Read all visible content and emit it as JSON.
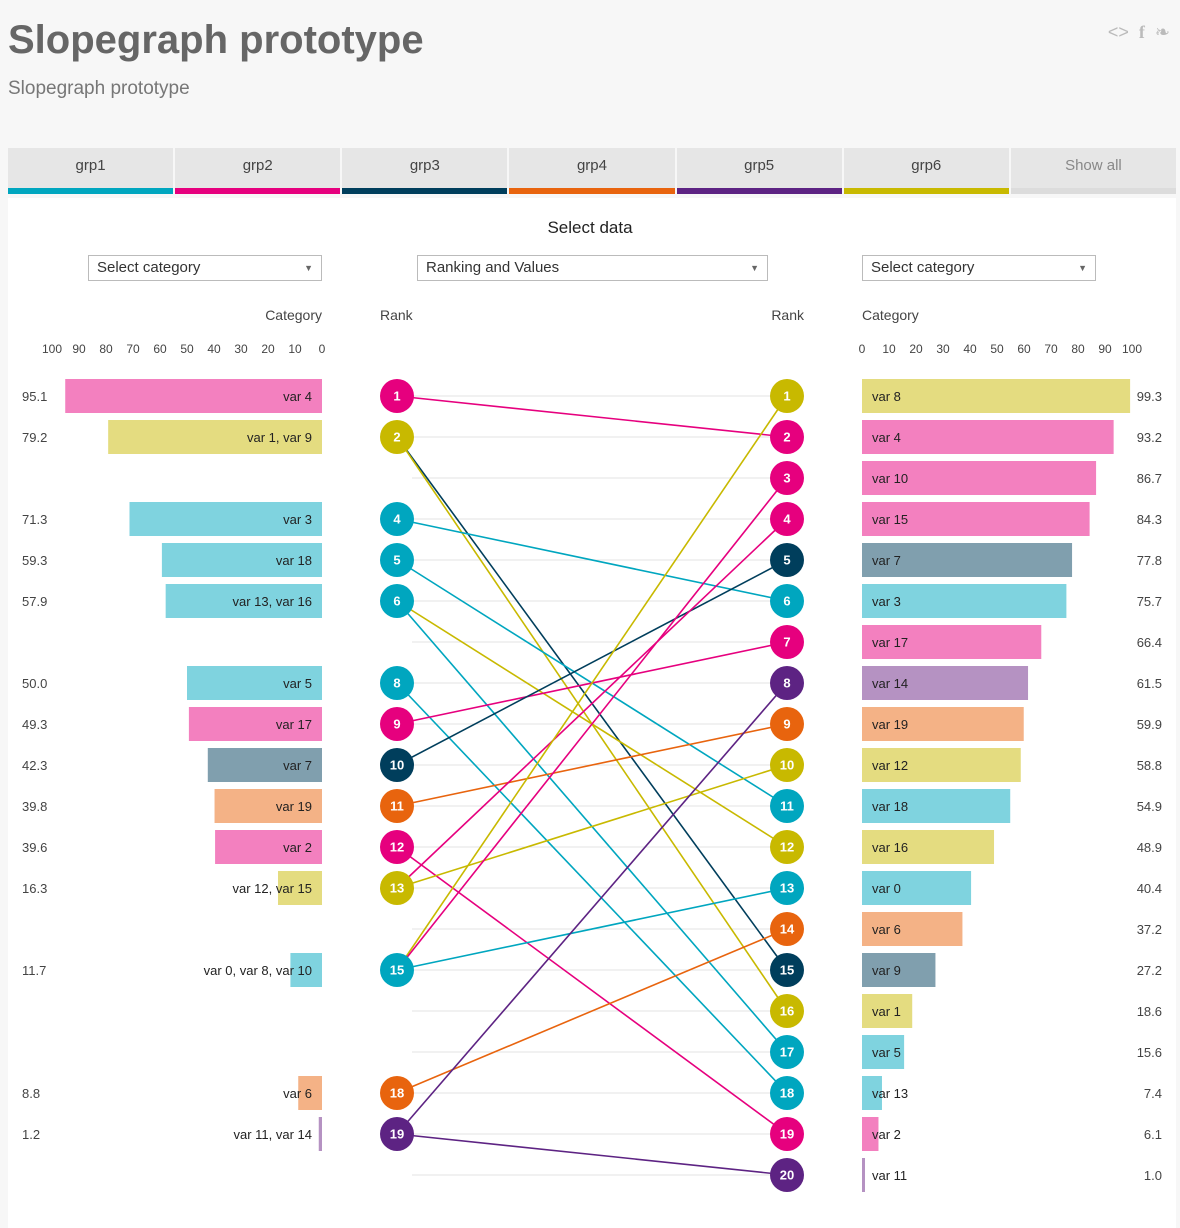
{
  "header": {
    "title": "Slopegraph prototype",
    "subtitle": "Slopegraph prototype"
  },
  "share_icons": [
    "embed-icon",
    "facebook-icon",
    "twitter-icon"
  ],
  "tabs": [
    {
      "label": "grp1",
      "color": "#00a6bf"
    },
    {
      "label": "grp2",
      "color": "#e6007e"
    },
    {
      "label": "grp3",
      "color": "#003e5c"
    },
    {
      "label": "grp4",
      "color": "#e8640e"
    },
    {
      "label": "grp5",
      "color": "#5d2383"
    },
    {
      "label": "grp6",
      "color": "#c8b900"
    },
    {
      "label": "Show all",
      "color": "#dcdcdc"
    }
  ],
  "controls": {
    "select_data_label": "Select data",
    "left_select": "Select category",
    "middle_select": "Ranking and Values",
    "right_select": "Select category"
  },
  "chart_data": {
    "type": "slopegraph",
    "left_axis": {
      "label": "Category",
      "ticks": [
        100,
        90,
        80,
        70,
        60,
        50,
        40,
        30,
        20,
        10,
        0
      ],
      "range": [
        0,
        100
      ]
    },
    "right_axis": {
      "label": "Category",
      "ticks": [
        0,
        10,
        20,
        30,
        40,
        50,
        60,
        70,
        80,
        90,
        100
      ],
      "range": [
        0,
        100
      ]
    },
    "rank_label_left": "Rank",
    "rank_label_right": "Rank",
    "left_bars": [
      {
        "rank": 1,
        "value": 95.1,
        "value_label": "95.1",
        "label": "var 4",
        "group": 1
      },
      {
        "rank": 2,
        "value": 79.2,
        "value_label": "79.2",
        "label": "var 1, var 9",
        "group": 5
      },
      {
        "rank": 4,
        "value": 71.3,
        "value_label": "71.3",
        "label": "var 3",
        "group": 0
      },
      {
        "rank": 5,
        "value": 59.3,
        "value_label": "59.3",
        "label": "var 18",
        "group": 0
      },
      {
        "rank": 6,
        "value": 57.9,
        "value_label": "57.9",
        "label": "var 13, var 16",
        "group": 0
      },
      {
        "rank": 8,
        "value": 50.0,
        "value_label": "50.0",
        "label": "var 5",
        "group": 0
      },
      {
        "rank": 9,
        "value": 49.3,
        "value_label": "49.3",
        "label": "var 17",
        "group": 1
      },
      {
        "rank": 10,
        "value": 42.3,
        "value_label": "42.3",
        "label": "var 7",
        "group": 2
      },
      {
        "rank": 11,
        "value": 39.8,
        "value_label": "39.8",
        "label": "var 19",
        "group": 3
      },
      {
        "rank": 12,
        "value": 39.6,
        "value_label": "39.6",
        "label": "var 2",
        "group": 1
      },
      {
        "rank": 13,
        "value": 16.3,
        "value_label": "16.3",
        "label": "var 12, var 15",
        "group": 5
      },
      {
        "rank": 15,
        "value": 11.7,
        "value_label": "11.7",
        "label": "var 0, var 8, var 10",
        "group": 0
      },
      {
        "rank": 18,
        "value": 8.8,
        "value_label": "8.8",
        "label": "var 6",
        "group": 3
      },
      {
        "rank": 19,
        "value": 1.2,
        "value_label": "1.2",
        "label": "var 11, var 14",
        "group": 4
      }
    ],
    "right_bars": [
      {
        "rank": 1,
        "value": 99.3,
        "value_label": "99.3",
        "label": "var 8",
        "group": 5
      },
      {
        "rank": 2,
        "value": 93.2,
        "value_label": "93.2",
        "label": "var 4",
        "group": 1
      },
      {
        "rank": 3,
        "value": 86.7,
        "value_label": "86.7",
        "label": "var 10",
        "group": 1
      },
      {
        "rank": 4,
        "value": 84.3,
        "value_label": "84.3",
        "label": "var 15",
        "group": 1
      },
      {
        "rank": 5,
        "value": 77.8,
        "value_label": "77.8",
        "label": "var 7",
        "group": 2
      },
      {
        "rank": 6,
        "value": 75.7,
        "value_label": "75.7",
        "label": "var 3",
        "group": 0
      },
      {
        "rank": 7,
        "value": 66.4,
        "value_label": "66.4",
        "label": "var 17",
        "group": 1
      },
      {
        "rank": 8,
        "value": 61.5,
        "value_label": "61.5",
        "label": "var 14",
        "group": 4
      },
      {
        "rank": 9,
        "value": 59.9,
        "value_label": "59.9",
        "label": "var 19",
        "group": 3
      },
      {
        "rank": 10,
        "value": 58.8,
        "value_label": "58.8",
        "label": "var 12",
        "group": 5
      },
      {
        "rank": 11,
        "value": 54.9,
        "value_label": "54.9",
        "label": "var 18",
        "group": 0
      },
      {
        "rank": 12,
        "value": 48.9,
        "value_label": "48.9",
        "label": "var 16",
        "group": 5
      },
      {
        "rank": 13,
        "value": 40.4,
        "value_label": "40.4",
        "label": "var 0",
        "group": 0
      },
      {
        "rank": 14,
        "value": 37.2,
        "value_label": "37.2",
        "label": "var 6",
        "group": 3
      },
      {
        "rank": 15,
        "value": 27.2,
        "value_label": "27.2",
        "label": "var 9",
        "group": 2
      },
      {
        "rank": 16,
        "value": 18.6,
        "value_label": "18.6",
        "label": "var 1",
        "group": 5
      },
      {
        "rank": 17,
        "value": 15.6,
        "value_label": "15.6",
        "label": "var 5",
        "group": 0
      },
      {
        "rank": 18,
        "value": 7.4,
        "value_label": "7.4",
        "label": "var 13",
        "group": 0
      },
      {
        "rank": 19,
        "value": 6.1,
        "value_label": "6.1",
        "label": "var 2",
        "group": 1
      },
      {
        "rank": 20,
        "value": 1.0,
        "value_label": "1.0",
        "label": "var 11",
        "group": 4
      }
    ],
    "left_nodes": [
      {
        "rank": 1,
        "group": 1
      },
      {
        "rank": 2,
        "group": 5
      },
      {
        "rank": 4,
        "group": 0
      },
      {
        "rank": 5,
        "group": 0
      },
      {
        "rank": 6,
        "group": 0
      },
      {
        "rank": 8,
        "group": 0
      },
      {
        "rank": 9,
        "group": 1
      },
      {
        "rank": 10,
        "group": 2
      },
      {
        "rank": 11,
        "group": 3
      },
      {
        "rank": 12,
        "group": 1
      },
      {
        "rank": 13,
        "group": 5
      },
      {
        "rank": 15,
        "group": 0
      },
      {
        "rank": 18,
        "group": 3
      },
      {
        "rank": 19,
        "group": 4
      }
    ],
    "right_nodes": [
      {
        "rank": 1,
        "group": 5
      },
      {
        "rank": 2,
        "group": 1
      },
      {
        "rank": 3,
        "group": 1
      },
      {
        "rank": 4,
        "group": 1
      },
      {
        "rank": 5,
        "group": 2
      },
      {
        "rank": 6,
        "group": 0
      },
      {
        "rank": 7,
        "group": 1
      },
      {
        "rank": 8,
        "group": 4
      },
      {
        "rank": 9,
        "group": 3
      },
      {
        "rank": 10,
        "group": 5
      },
      {
        "rank": 11,
        "group": 0
      },
      {
        "rank": 12,
        "group": 5
      },
      {
        "rank": 13,
        "group": 0
      },
      {
        "rank": 14,
        "group": 3
      },
      {
        "rank": 15,
        "group": 2
      },
      {
        "rank": 16,
        "group": 5
      },
      {
        "rank": 17,
        "group": 0
      },
      {
        "rank": 18,
        "group": 0
      },
      {
        "rank": 19,
        "group": 1
      },
      {
        "rank": 20,
        "group": 4
      }
    ],
    "links": [
      {
        "from": 1,
        "to": 2,
        "group": 1
      },
      {
        "from": 2,
        "to": 15,
        "group": 2
      },
      {
        "from": 2,
        "to": 16,
        "group": 5
      },
      {
        "from": 4,
        "to": 6,
        "group": 0
      },
      {
        "from": 5,
        "to": 11,
        "group": 0
      },
      {
        "from": 6,
        "to": 12,
        "group": 5
      },
      {
        "from": 6,
        "to": 17,
        "group": 0
      },
      {
        "from": 8,
        "to": 18,
        "group": 0
      },
      {
        "from": 9,
        "to": 7,
        "group": 1
      },
      {
        "from": 10,
        "to": 5,
        "group": 2
      },
      {
        "from": 11,
        "to": 9,
        "group": 3
      },
      {
        "from": 12,
        "to": 19,
        "group": 1
      },
      {
        "from": 13,
        "to": 10,
        "group": 5
      },
      {
        "from": 13,
        "to": 4,
        "group": 1
      },
      {
        "from": 15,
        "to": 1,
        "group": 5
      },
      {
        "from": 15,
        "to": 3,
        "group": 1
      },
      {
        "from": 15,
        "to": 13,
        "group": 0
      },
      {
        "from": 18,
        "to": 14,
        "group": 3
      },
      {
        "from": 19,
        "to": 8,
        "group": 4
      },
      {
        "from": 19,
        "to": 20,
        "group": 4
      }
    ],
    "group_colors": [
      "#00a6bf",
      "#e6007e",
      "#003e5c",
      "#e8640e",
      "#5d2383",
      "#c8b900"
    ],
    "bar_colors": [
      "#7fd3df",
      "#f380bf",
      "#809fae",
      "#f4b286",
      "#b592c2",
      "#e4dc80"
    ],
    "grid": true
  }
}
